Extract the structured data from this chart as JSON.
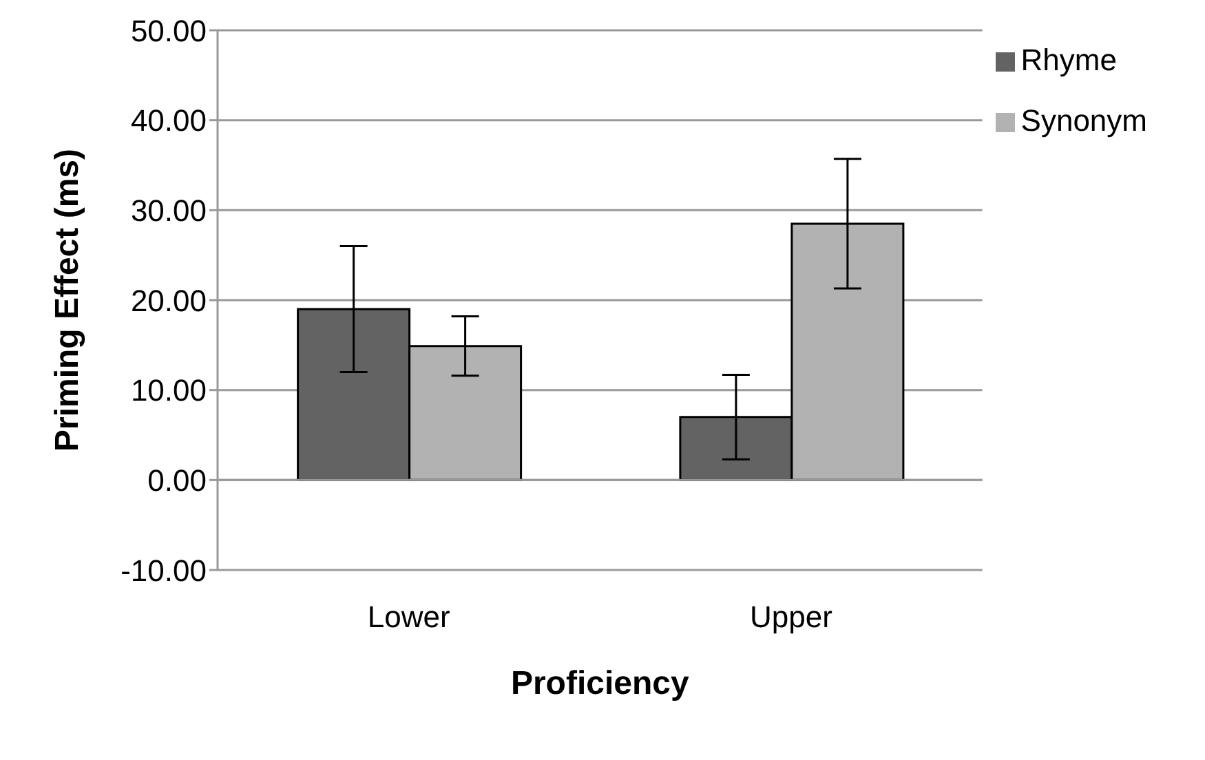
{
  "chart_data": {
    "type": "bar",
    "xlabel": "Proficiency",
    "ylabel": "Priming Effect (ms)",
    "categories": [
      "Lower",
      "Upper"
    ],
    "series": [
      {
        "name": "Rhyme",
        "color": "#636363",
        "values": [
          19.0,
          7.0
        ],
        "errors": [
          7.0,
          4.7
        ]
      },
      {
        "name": "Synonym",
        "color": "#b2b2b2",
        "values": [
          14.9,
          28.5
        ],
        "errors": [
          3.3,
          7.2
        ]
      }
    ],
    "ylim": [
      -10,
      50
    ],
    "yticks": [
      {
        "value": -10,
        "label": "-10.00"
      },
      {
        "value": 0,
        "label": "0.00"
      },
      {
        "value": 10,
        "label": "10.00"
      },
      {
        "value": 20,
        "label": "20.00"
      },
      {
        "value": 30,
        "label": "30.00"
      },
      {
        "value": 40,
        "label": "40.00"
      },
      {
        "value": 50,
        "label": "50.00"
      }
    ],
    "grid": "y",
    "legend": "top right"
  }
}
